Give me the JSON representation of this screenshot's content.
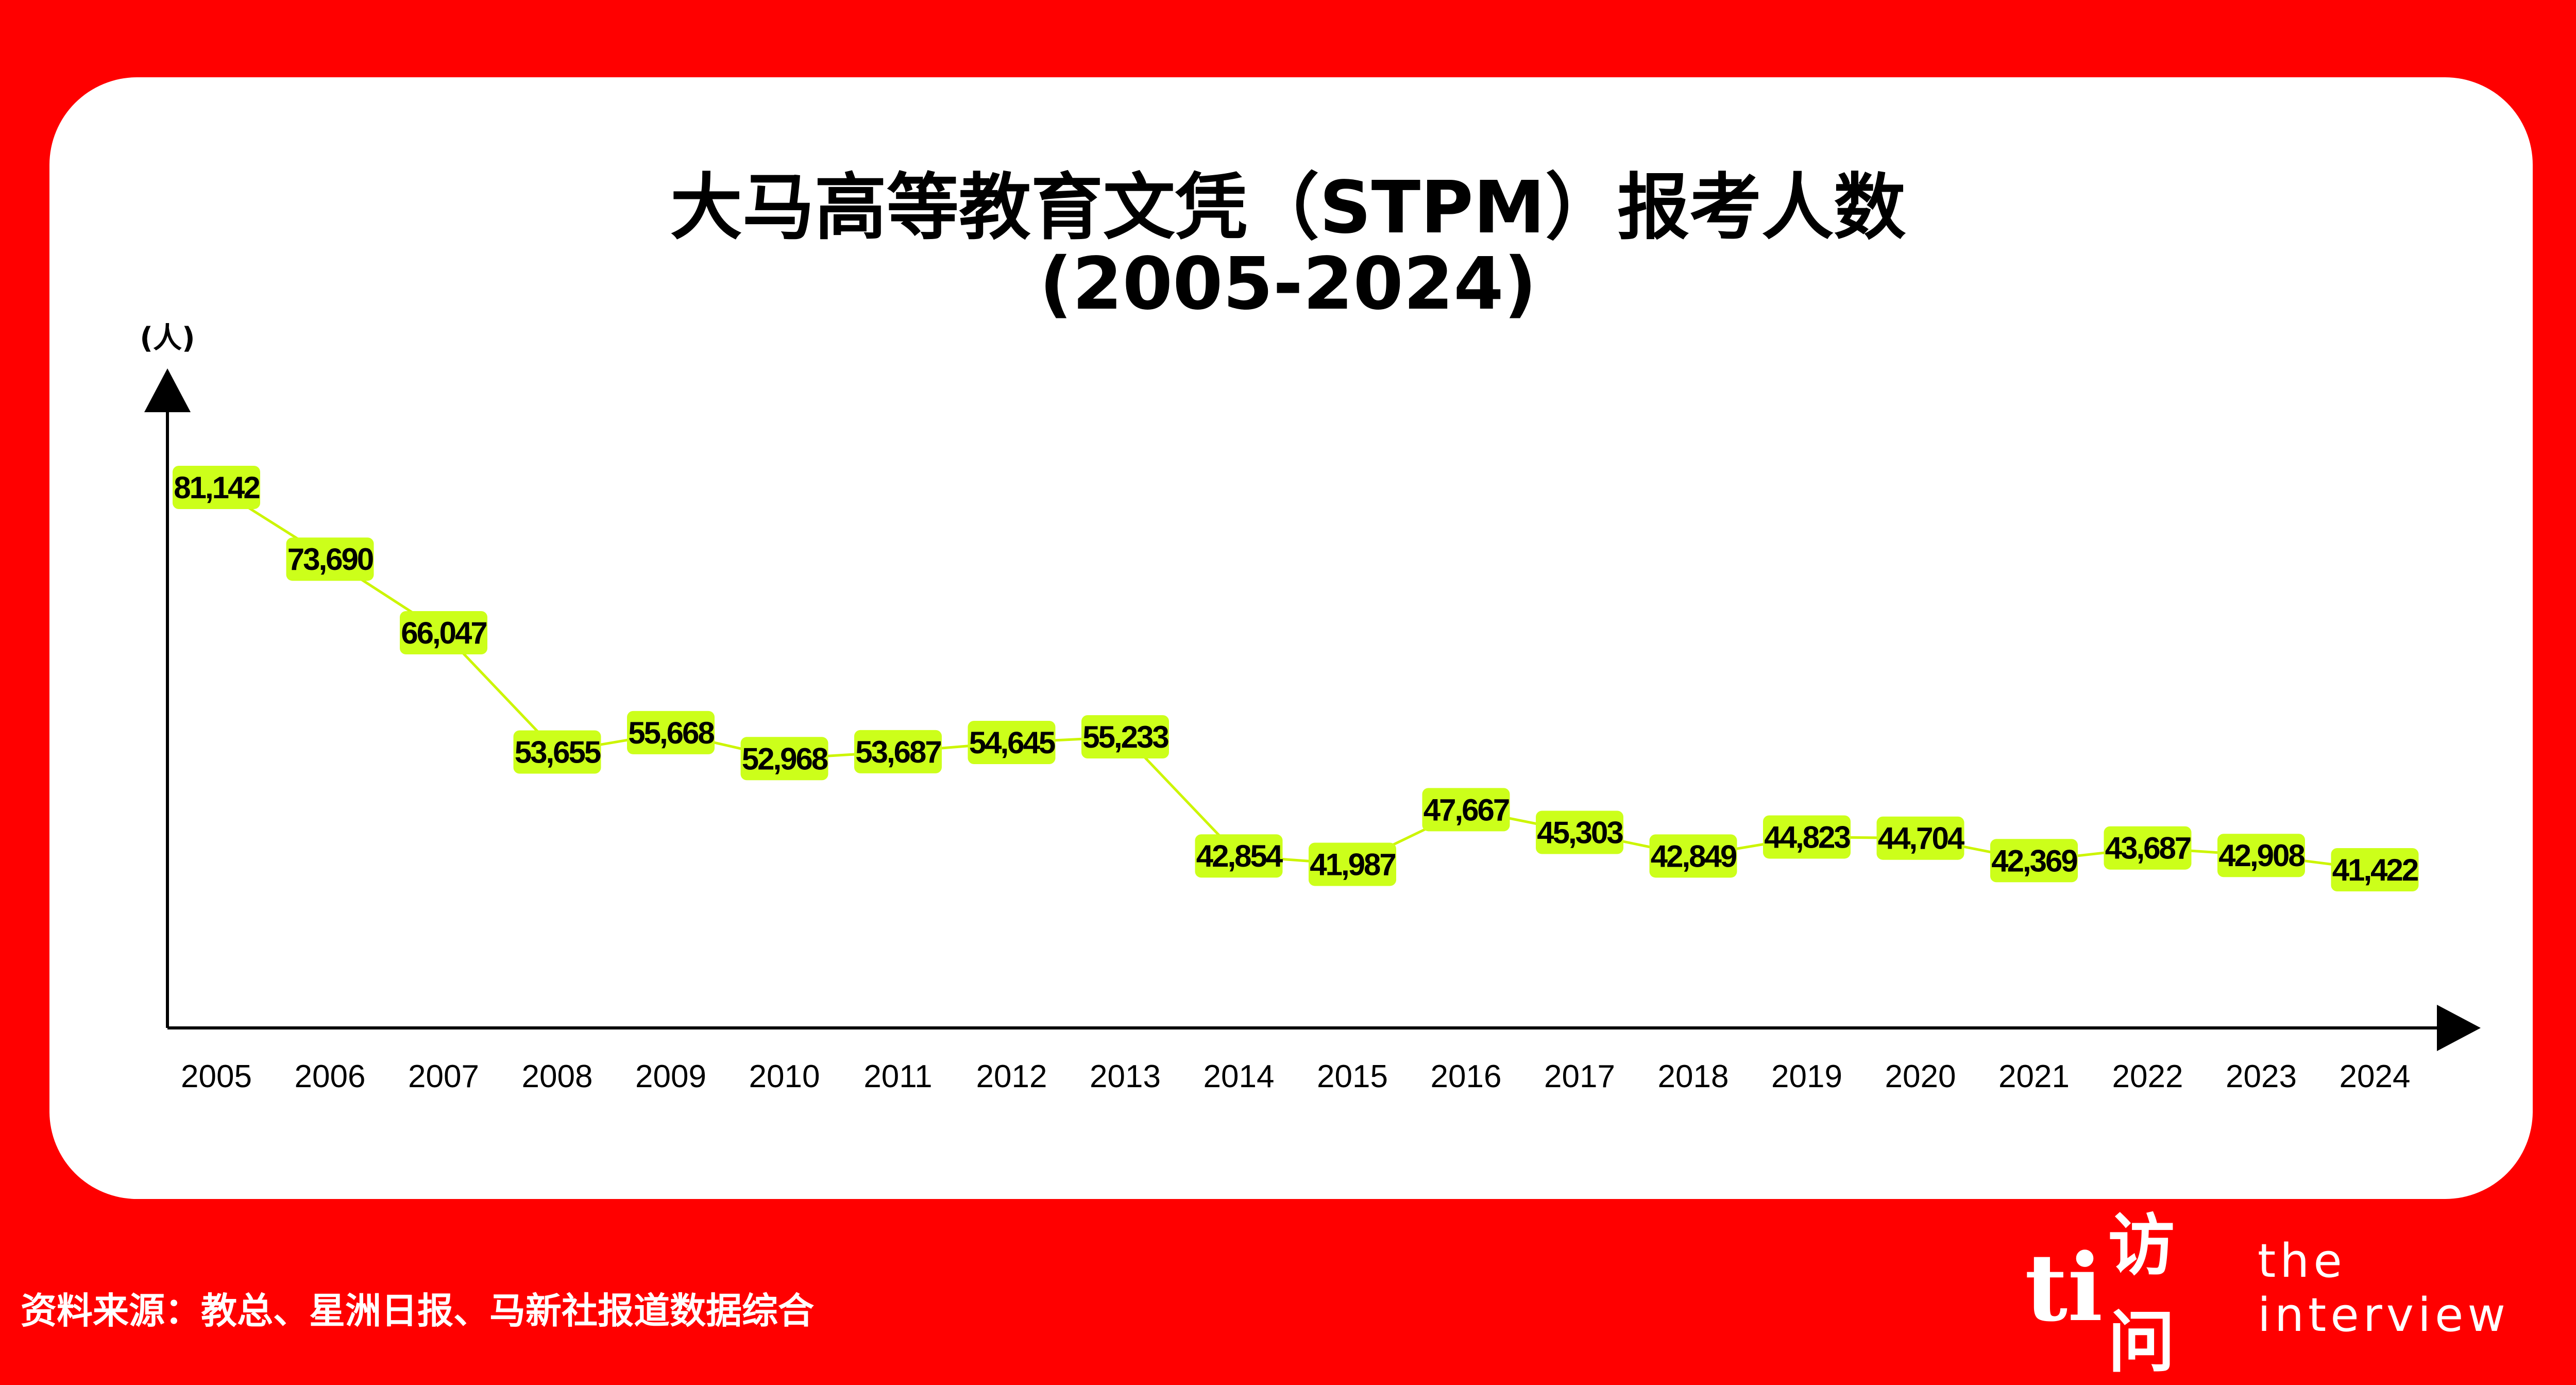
{
  "header": {
    "title_line1": "大马高等教育文凭（STPM）报考人数",
    "title_line2": "(2005-2024)"
  },
  "chart_data": {
    "type": "line",
    "ylabel": "(人)",
    "xlabel": "",
    "categories": [
      "2005",
      "2006",
      "2007",
      "2008",
      "2009",
      "2010",
      "2011",
      "2012",
      "2013",
      "2014",
      "2015",
      "2016",
      "2017",
      "2018",
      "2019",
      "2020",
      "2021",
      "2022",
      "2023",
      "2024"
    ],
    "values": [
      81142,
      73690,
      66047,
      53655,
      55668,
      52968,
      53687,
      54645,
      55233,
      42854,
      41987,
      47667,
      45303,
      42849,
      44823,
      44704,
      42369,
      43687,
      42908,
      41422
    ],
    "labels": [
      "81,142",
      "73,690",
      "66,047",
      "53,655",
      "55,668",
      "52,968",
      "53,687",
      "54,645",
      "55,233",
      "42,854",
      "41,987",
      "47,667",
      "45,303",
      "42,849",
      "44,823",
      "44,704",
      "42,369",
      "43,687",
      "42,908",
      "41,422"
    ],
    "colors": {
      "line": "#ccf500",
      "label_bg": "#ccff1a",
      "axis": "#000000"
    }
  },
  "footer": {
    "source": "资料来源：教总、星洲日报、马新社报道数据综合",
    "brand_logo": "ti",
    "brand_cn": "访问",
    "brand_en": "the interview"
  }
}
